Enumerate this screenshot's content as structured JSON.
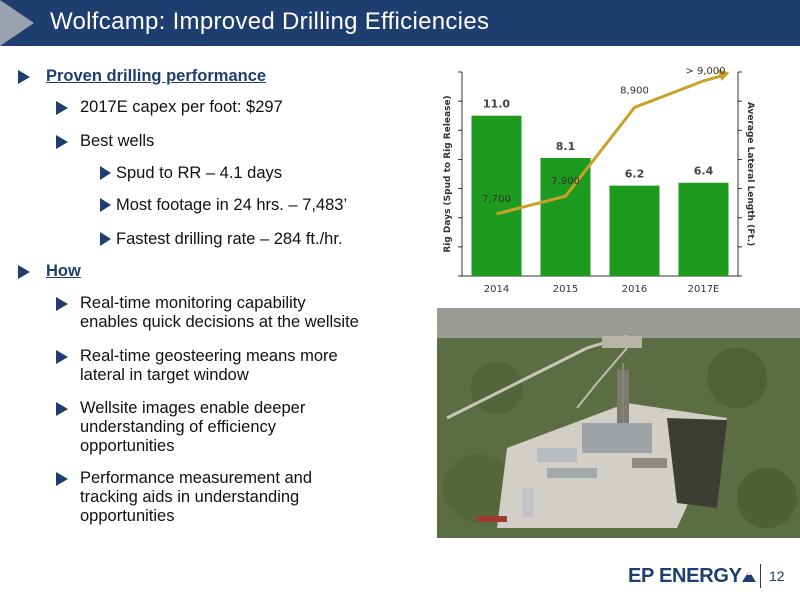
{
  "slide": {
    "title": "Wolfcamp: Improved Drilling Efficiencies",
    "page_number": "12",
    "logo_text": "EP ENERGY"
  },
  "bullets": [
    {
      "level": 1,
      "lines": [
        "Proven drilling performance"
      ]
    },
    {
      "level": 2,
      "lines": [
        "2017E capex per foot: $297"
      ]
    },
    {
      "level": 2,
      "lines": [
        "Best wells"
      ]
    },
    {
      "level": 3,
      "lines": [
        "Spud to RR – 4.1 days"
      ]
    },
    {
      "level": 3,
      "lines": [
        "Most footage in 24 hrs. – 7,483’"
      ]
    },
    {
      "level": 3,
      "lines": [
        "Fastest drilling rate – 284 ft./hr."
      ]
    },
    {
      "level": 1,
      "lines": [
        "How"
      ]
    },
    {
      "level": 2,
      "lines": [
        "Real-time monitoring capability",
        "enables quick decisions at the wellsite"
      ]
    },
    {
      "level": 2,
      "lines": [
        "Real-time geosteering means more",
        "lateral in target window"
      ]
    },
    {
      "level": 2,
      "lines": [
        "Wellsite images enable deeper",
        "understanding of efficiency",
        "opportunities"
      ]
    },
    {
      "level": 2,
      "lines": [
        "Performance measurement and",
        "tracking aids in understanding",
        "opportunities"
      ]
    }
  ],
  "chart_data": {
    "type": "bar",
    "categories": [
      "2014",
      "2015",
      "2016",
      "2017E"
    ],
    "ylabel": "Rig Days (Spud to Rig Release)",
    "y2label": "Average Lateral Length (Ft.)",
    "ylim": [
      0,
      14
    ],
    "y2lim": [
      7000,
      9300
    ],
    "series": [
      {
        "type": "bar",
        "values": [
          11.0,
          8.1,
          6.2,
          6.4
        ],
        "labels": [
          "11.0",
          "8.1",
          "6.2",
          "6.4"
        ],
        "color": "#1e9a1e"
      },
      {
        "type": "line",
        "axis": "right",
        "values": [
          7700,
          7900,
          8900,
          9200
        ],
        "labels": [
          "7,700",
          "7,900",
          "8,900",
          "> 9,000"
        ],
        "color": "#c9a227"
      }
    ],
    "grid": false
  },
  "photo": {
    "subject": "aerial-drilling-rig"
  },
  "colors": {
    "navy": "#1d3e6e",
    "bar_green": "#1e9a1e",
    "line_gold": "#c9a227"
  }
}
